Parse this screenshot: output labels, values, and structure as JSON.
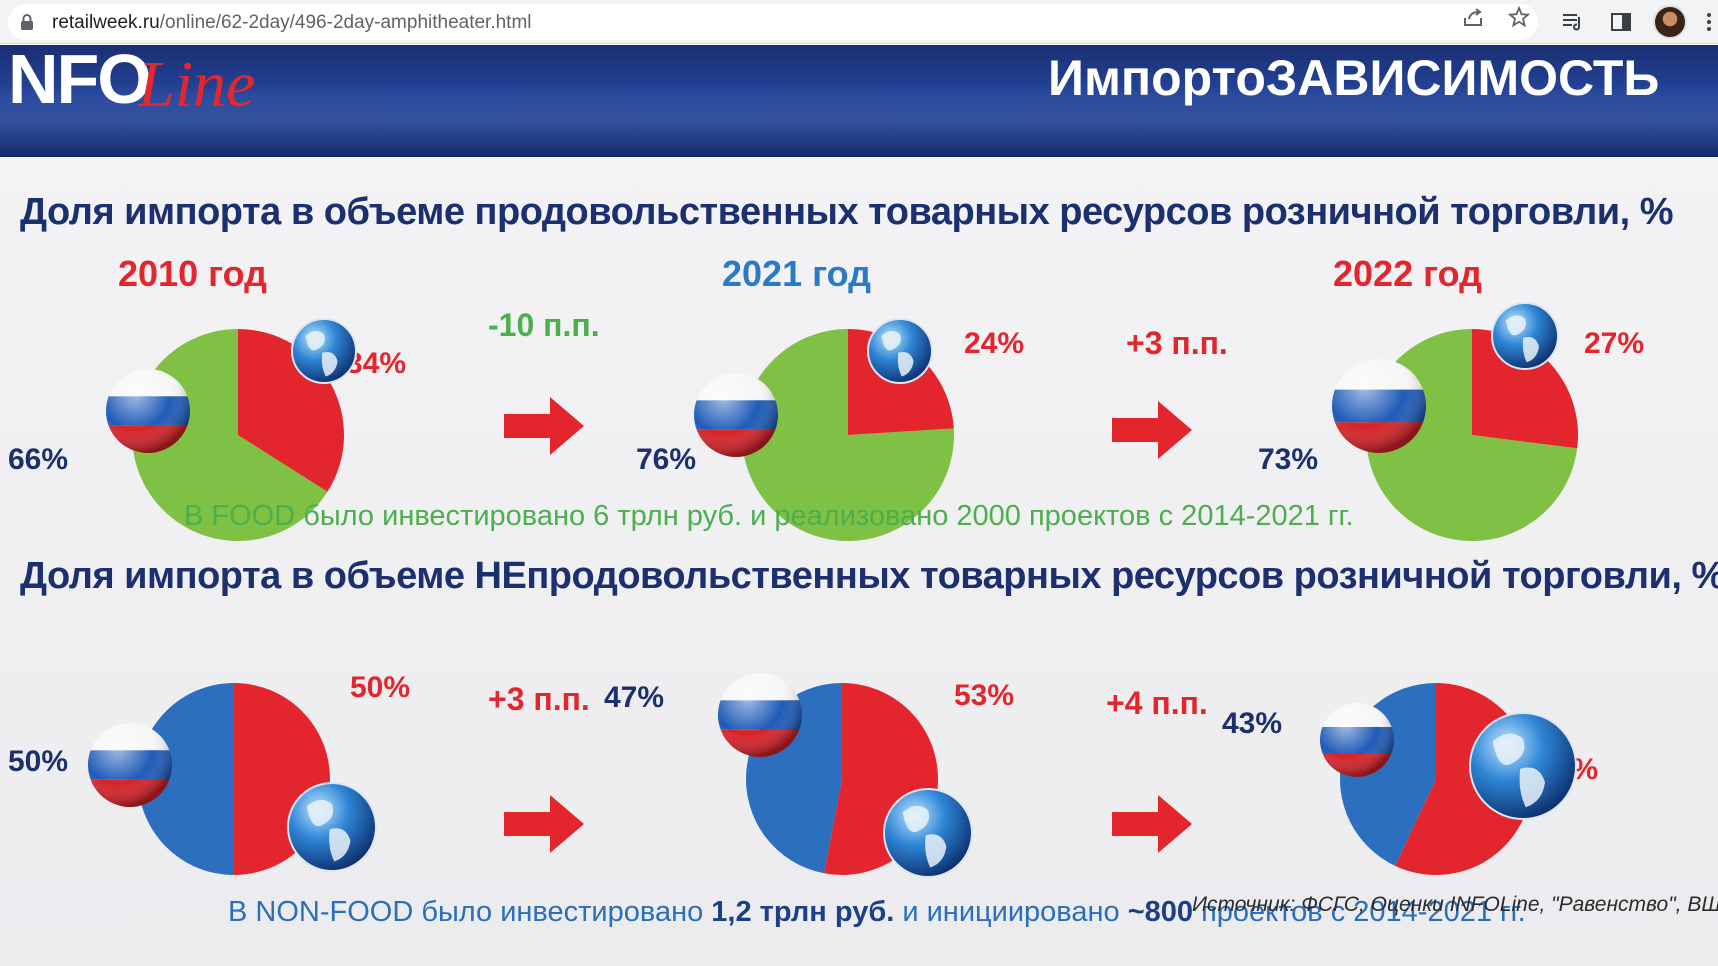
{
  "browser": {
    "url_domain": "retailweek.ru",
    "url_path": "/online/62-2day/496-2day-amphitheater.html",
    "icons": [
      "lock-icon",
      "share-icon",
      "star-icon",
      "reading-list-icon",
      "side-panel-icon",
      "avatar",
      "more-icon"
    ]
  },
  "slide": {
    "logo_nfo": "NFO",
    "logo_line": "Line",
    "header_title": "ИмпортоЗАВИСИМОСТЬ",
    "food": {
      "title": "Доля импорта в объеме продовольственных товарных ресурсов розничной торговли, %",
      "years": [
        "2010 год",
        "2021 год",
        "2022 год"
      ],
      "import_labels": [
        "34%",
        "24%",
        "27%"
      ],
      "domestic_labels": [
        "66%",
        "76%",
        "73%"
      ],
      "deltas": [
        "-10 п.п.",
        "+3 п.п."
      ],
      "note": "В FOOD было инвестировано 6 трлн руб. и реализовано 2000 проектов с 2014-2021 гг."
    },
    "nonfood": {
      "title": "Доля импорта в объеме НЕпродовольственных товарных ресурсов розничной торговли, %",
      "import_labels": [
        "50%",
        "53%",
        "57%"
      ],
      "domestic_labels": [
        "50%",
        "47%",
        "43%"
      ],
      "deltas": [
        "+3 п.п.",
        "+4 п.п."
      ],
      "note_part1": "В NON-FOOD было инвестировано ",
      "note_bold1": "1,2 трлн руб.",
      "note_part2": " и инициировано ",
      "note_bold2": "~800",
      "note_part3": " проектов с 2014-2021 гг."
    },
    "source": "Источник: ФСГС, Оценки INFOLine, \"Равенство\", ВШЭ"
  },
  "chart_data": [
    {
      "type": "pie",
      "title": "Доля импорта в объеме продовольственных товарных ресурсов розничной торговли, %",
      "categories": [
        "2010 год",
        "2021 год",
        "2022 год"
      ],
      "series": [
        {
          "values": [
            34,
            24,
            27
          ]
        },
        {
          "values": [
            66,
            76,
            73
          ]
        }
      ]
    },
    {
      "type": "pie",
      "title": "Доля импорта в объеме НЕпродовольственных товарных ресурсов розничной торговли, %",
      "categories": [
        "2010 год",
        "2021 год",
        "2022 год"
      ],
      "series": [
        {
          "values": [
            50,
            53,
            57
          ]
        },
        {
          "values": [
            50,
            47,
            43
          ]
        }
      ]
    }
  ],
  "colors": {
    "import": "#e3262d",
    "food_domestic": "#7fc144",
    "nonfood_domestic": "#2c6fbf",
    "title_navy": "#1c2f6e",
    "note_green": "#4cae4c",
    "note_blue": "#2a6fbb",
    "year_red": "#e3262d",
    "year_blue": "#2a7ac6"
  }
}
